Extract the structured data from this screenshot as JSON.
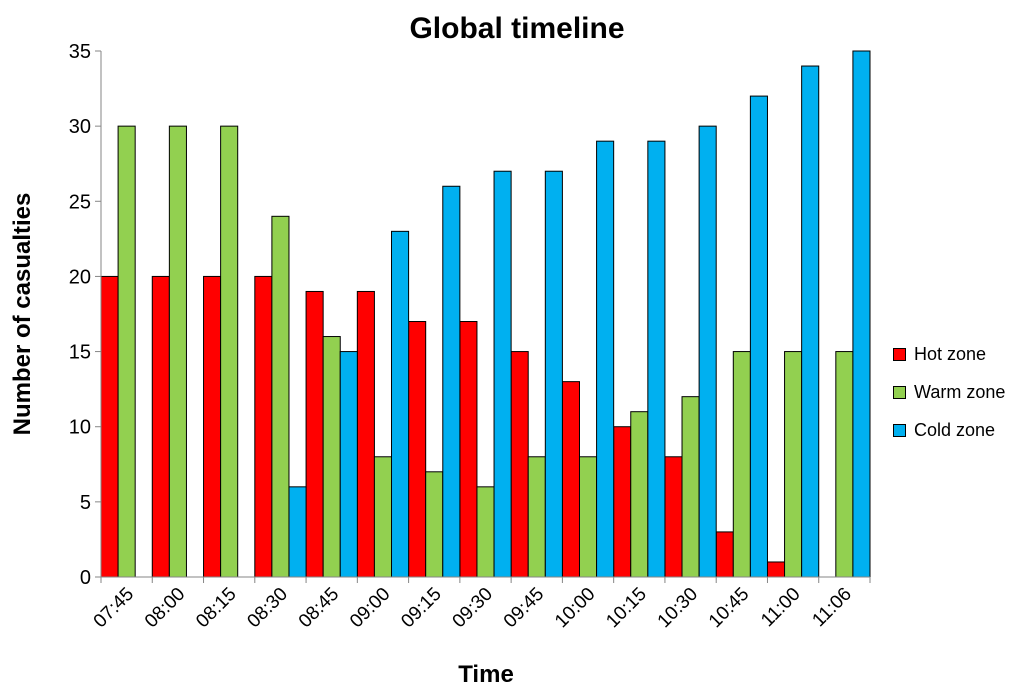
{
  "chart_data": {
    "type": "bar",
    "title": "Global timeline",
    "xlabel": "Time",
    "ylabel": "Number of casualties",
    "ylim": [
      0,
      35
    ],
    "yticks": [
      0,
      5,
      10,
      15,
      20,
      25,
      30,
      35
    ],
    "grid": false,
    "legend_position": "right",
    "categories": [
      "07:45",
      "08:00",
      "08:15",
      "08:30",
      "08:45",
      "09:00",
      "09:15",
      "09:30",
      "09:45",
      "10:00",
      "10:15",
      "10:30",
      "10:45",
      "11:00",
      "11:06"
    ],
    "series": [
      {
        "name": "Hot zone",
        "color": "#ff0000",
        "values": [
          20,
          20,
          20,
          20,
          19,
          19,
          17,
          17,
          15,
          13,
          10,
          8,
          3,
          1,
          0
        ]
      },
      {
        "name": "Warm zone",
        "color": "#92d050",
        "values": [
          30,
          30,
          30,
          24,
          16,
          8,
          7,
          6,
          8,
          8,
          11,
          12,
          15,
          15,
          15
        ]
      },
      {
        "name": "Cold zone",
        "color": "#00b0f0",
        "values": [
          0,
          0,
          0,
          6,
          15,
          23,
          26,
          27,
          27,
          29,
          29,
          30,
          32,
          34,
          35
        ]
      }
    ]
  }
}
